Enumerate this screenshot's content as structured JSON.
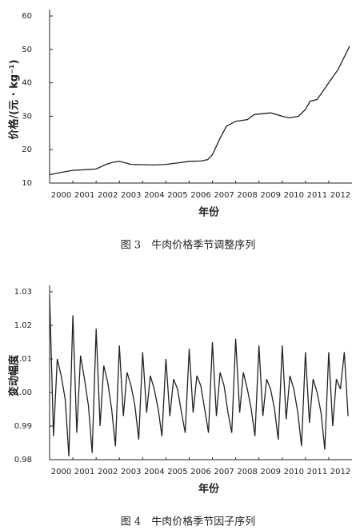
{
  "chart_data": [
    {
      "type": "line",
      "y_label": "价格/(元 · kg⁻¹)",
      "x_label": "年份",
      "caption": "图 3　牛肉价格季节调整序列",
      "x": [
        2000,
        2000.5,
        2001,
        2001.5,
        2002,
        2002.4,
        2002.7,
        2003,
        2003.5,
        2004,
        2004.5,
        2005,
        2005.5,
        2006,
        2006.5,
        2006.8,
        2007,
        2007.3,
        2007.6,
        2008,
        2008.5,
        2008.8,
        2009.5,
        2010,
        2010.3,
        2010.7,
        2011,
        2011.2,
        2011.5,
        2011.7,
        2012,
        2012.4,
        2012.9
      ],
      "values": [
        12.5,
        13.2,
        13.8,
        14,
        14.2,
        15.5,
        16.2,
        16.5,
        15.6,
        15.5,
        15.4,
        15.6,
        16,
        16.5,
        16.6,
        17,
        18.5,
        23,
        27,
        28.5,
        29,
        30.5,
        31,
        30,
        29.5,
        30,
        32,
        34.5,
        35,
        37,
        40,
        44,
        51
      ],
      "color": "#222222",
      "xlim": [
        2000,
        2013
      ],
      "xticks": [
        2000,
        2001,
        2002,
        2003,
        2004,
        2005,
        2006,
        2007,
        2008,
        2009,
        2010,
        2011,
        2012
      ],
      "ylim": [
        10,
        60
      ],
      "yticks": [
        10,
        20,
        30,
        40,
        50,
        60
      ]
    },
    {
      "type": "line",
      "y_label": "变动幅度",
      "x_label": "年份",
      "caption": "图 4　牛肉价格季节因子序列",
      "x": [
        2000,
        2000.17,
        2000.33,
        2000.5,
        2000.67,
        2000.83,
        2001,
        2001.17,
        2001.33,
        2001.5,
        2001.67,
        2001.83,
        2002,
        2002.17,
        2002.33,
        2002.5,
        2002.67,
        2002.83,
        2003,
        2003.17,
        2003.33,
        2003.5,
        2003.67,
        2003.83,
        2004,
        2004.17,
        2004.33,
        2004.5,
        2004.67,
        2004.83,
        2005,
        2005.17,
        2005.33,
        2005.5,
        2005.67,
        2005.83,
        2006,
        2006.17,
        2006.33,
        2006.5,
        2006.67,
        2006.83,
        2007,
        2007.17,
        2007.33,
        2007.5,
        2007.67,
        2007.83,
        2008,
        2008.17,
        2008.33,
        2008.5,
        2008.67,
        2008.83,
        2009,
        2009.17,
        2009.33,
        2009.5,
        2009.67,
        2009.83,
        2010,
        2010.17,
        2010.33,
        2010.5,
        2010.67,
        2010.83,
        2011,
        2011.17,
        2011.33,
        2011.5,
        2011.67,
        2011.83,
        2012,
        2012.17,
        2012.33,
        2012.5,
        2012.67,
        2012.83
      ],
      "values": [
        1.029,
        0.987,
        1.01,
        1.005,
        0.998,
        0.981,
        1.023,
        0.988,
        1.011,
        1.004,
        0.996,
        0.982,
        1.019,
        0.99,
        1.008,
        1.003,
        0.995,
        0.984,
        1.014,
        0.993,
        1.006,
        1.002,
        0.996,
        0.986,
        1.012,
        0.994,
        1.005,
        1.001,
        0.995,
        0.987,
        1.01,
        0.993,
        1.004,
        1.001,
        0.994,
        0.988,
        1.013,
        0.994,
        1.005,
        1.002,
        0.995,
        0.988,
        1.015,
        0.993,
        1.006,
        1.002,
        0.994,
        0.988,
        1.016,
        0.994,
        1.006,
        1.001,
        0.995,
        0.987,
        1.014,
        0.993,
        1.004,
        1.001,
        0.995,
        0.986,
        1.014,
        0.992,
        1.005,
        1.001,
        0.994,
        0.984,
        1.012,
        0.991,
        1.004,
        1.0,
        0.994,
        0.983,
        1.012,
        0.99,
        1.004,
        1.001,
        1.012,
        0.993
      ],
      "color": "#222222",
      "xlim": [
        2000,
        2013
      ],
      "xticks": [
        2000,
        2001,
        2002,
        2003,
        2004,
        2005,
        2006,
        2007,
        2008,
        2009,
        2010,
        2011,
        2012
      ],
      "ylim": [
        0.98,
        1.03
      ],
      "yticks": [
        0.98,
        0.99,
        {
          "value": 1,
          "label": "1.00"
        },
        1.01,
        1.02,
        1.03
      ]
    }
  ]
}
